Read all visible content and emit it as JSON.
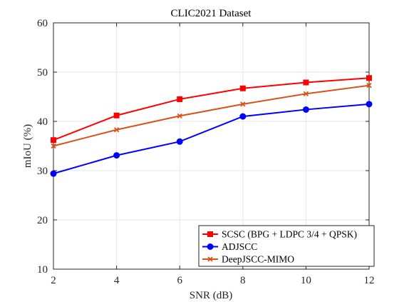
{
  "chart_data": {
    "type": "line",
    "title": "CLIC2021 Dataset",
    "xlabel": "SNR (dB)",
    "ylabel": "mIoU (%)",
    "xlim": [
      2,
      12
    ],
    "ylim": [
      10,
      60
    ],
    "xticks": [
      2,
      4,
      6,
      8,
      10,
      12
    ],
    "yticks": [
      10,
      20,
      30,
      40,
      50,
      60
    ],
    "grid": true,
    "legend_position": "bottom-right",
    "x": [
      2,
      4,
      6,
      8,
      10,
      12
    ],
    "series": [
      {
        "name": "SCSC (BPG + LDPC 3/4 + QPSK)",
        "color": "#ff0000",
        "marker": "square",
        "values": [
          36.2,
          41.2,
          44.5,
          46.7,
          47.9,
          48.8
        ]
      },
      {
        "name": "ADJSCC",
        "color": "#0000ff",
        "marker": "circle",
        "values": [
          29.4,
          33.1,
          35.9,
          41.0,
          42.4,
          43.5
        ]
      },
      {
        "name": "DeepJSCC-MIMO",
        "color": "#d95319",
        "marker": "x",
        "values": [
          35.0,
          38.3,
          41.1,
          43.5,
          45.6,
          47.3
        ]
      }
    ]
  }
}
